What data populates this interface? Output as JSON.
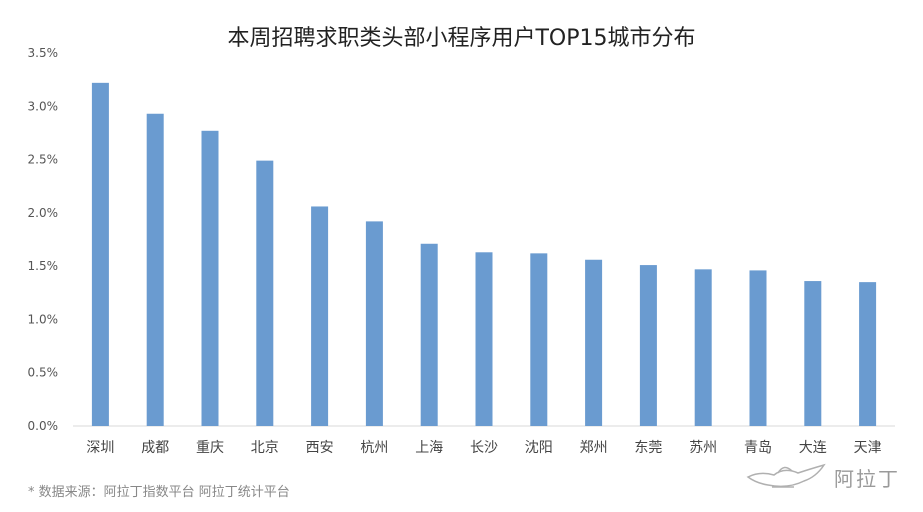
{
  "chart_data": {
    "type": "bar",
    "title": "本周招聘求职类头部小程序用户TOP15城市分布",
    "categories": [
      "深圳",
      "成都",
      "重庆",
      "北京",
      "西安",
      "杭州",
      "上海",
      "长沙",
      "沈阳",
      "郑州",
      "东莞",
      "苏州",
      "青岛",
      "大连",
      "天津"
    ],
    "values": [
      3.22,
      2.93,
      2.77,
      2.49,
      2.06,
      1.92,
      1.71,
      1.63,
      1.62,
      1.56,
      1.51,
      1.47,
      1.46,
      1.36,
      1.35
    ],
    "y_ticks": [
      "0.0%",
      "0.5%",
      "1.0%",
      "1.5%",
      "2.0%",
      "2.5%",
      "3.0%",
      "3.5%"
    ],
    "ylim": [
      0,
      3.5
    ],
    "unit": "%",
    "bar_color": "#6a9bd0",
    "axis_color": "#d9d9d9",
    "grid": false,
    "legend": "none"
  },
  "footer": {
    "source": "* 数据来源：阿拉丁指数平台 阿拉丁统计平台",
    "logo_text": "阿拉丁",
    "logo_icon": "magic-lamp-icon"
  }
}
